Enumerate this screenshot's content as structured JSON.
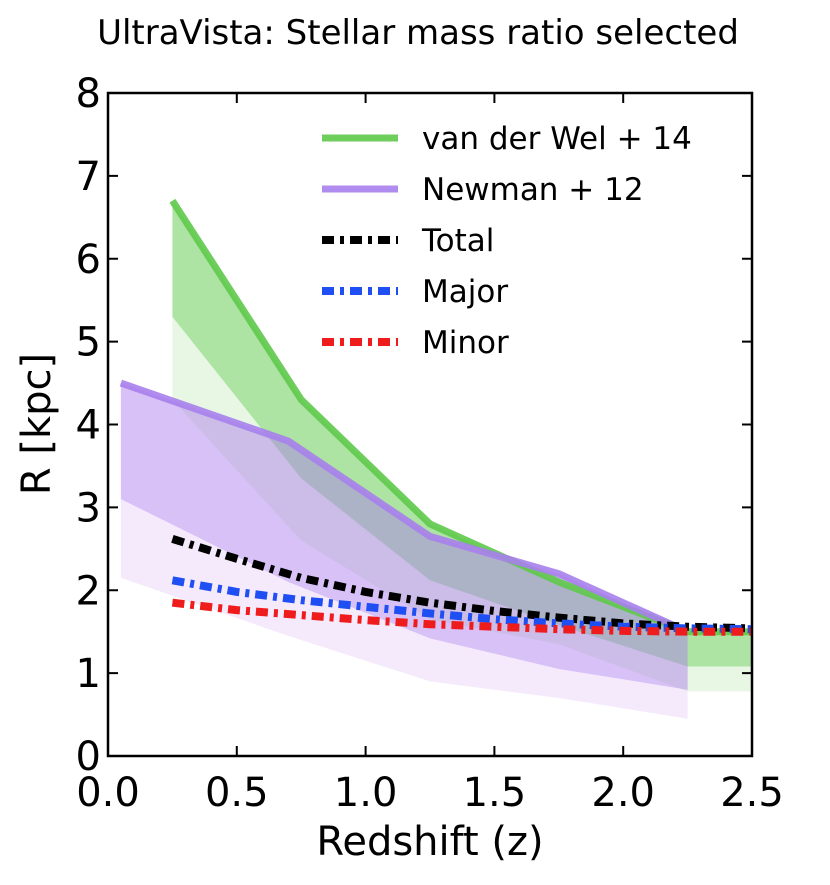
{
  "chart_data": {
    "type": "line",
    "title": "UltraVista: Stellar mass ratio selected",
    "xlabel": "Redshift (z)",
    "ylabel": "R [kpc]",
    "xlim": [
      0.0,
      2.5
    ],
    "ylim": [
      0,
      8
    ],
    "xticks": [
      0.0,
      0.5,
      1.0,
      1.5,
      2.0,
      2.5
    ],
    "xtick_labels": [
      "0.0",
      "0.5",
      "1.0",
      "1.5",
      "2.0",
      "2.5"
    ],
    "yticks": [
      0,
      1,
      2,
      3,
      4,
      5,
      6,
      7,
      8
    ],
    "ytick_labels": [
      "0",
      "1",
      "2",
      "3",
      "4",
      "5",
      "6",
      "7",
      "8"
    ],
    "legend_position": "top-right",
    "series": [
      {
        "name": "van der Wel + 14",
        "style": "solid",
        "color": "#5ec94a",
        "x": [
          0.25,
          0.75,
          1.25,
          1.75,
          2.25,
          2.5
        ],
        "values": [
          6.7,
          4.3,
          2.8,
          2.1,
          1.5,
          1.5
        ]
      },
      {
        "name": "Newman + 12",
        "style": "solid",
        "color": "#a77fec",
        "x": [
          0.05,
          0.7,
          1.25,
          1.75,
          2.25
        ],
        "values": [
          4.5,
          3.8,
          2.65,
          2.2,
          1.5
        ]
      },
      {
        "name": "Total",
        "style": "dashdot",
        "color": "#000000",
        "x": [
          0.25,
          0.5,
          0.75,
          1.0,
          1.25,
          1.5,
          1.75,
          2.0,
          2.25,
          2.5
        ],
        "values": [
          2.62,
          2.38,
          2.15,
          1.98,
          1.85,
          1.75,
          1.67,
          1.6,
          1.56,
          1.54
        ]
      },
      {
        "name": "Major",
        "style": "dashdot",
        "color": "#1f4ff2",
        "x": [
          0.25,
          0.5,
          0.75,
          1.0,
          1.25,
          1.5,
          1.75,
          2.0,
          2.25,
          2.5
        ],
        "values": [
          2.12,
          1.98,
          1.88,
          1.8,
          1.72,
          1.65,
          1.6,
          1.56,
          1.54,
          1.53
        ]
      },
      {
        "name": "Minor",
        "style": "dashdot",
        "color": "#ee1c1c",
        "x": [
          0.25,
          0.5,
          0.75,
          1.0,
          1.25,
          1.5,
          1.75,
          2.0,
          2.25,
          2.5
        ],
        "values": [
          1.85,
          1.76,
          1.7,
          1.64,
          1.59,
          1.56,
          1.53,
          1.51,
          1.5,
          1.5
        ]
      }
    ],
    "bands": [
      {
        "name": "van der Wel + 14 scatter (outer)",
        "color": "#5ec94a",
        "opacity": 0.15,
        "x": [
          0.25,
          0.75,
          1.25,
          1.75,
          2.25,
          2.5
        ],
        "upper": [
          6.7,
          4.3,
          2.8,
          2.1,
          1.5,
          1.5
        ],
        "lower": [
          4.3,
          2.6,
          1.65,
          1.35,
          0.78,
          0.78
        ]
      },
      {
        "name": "van der Wel + 14 scatter (inner)",
        "color": "#5ec94a",
        "opacity": 0.42,
        "x": [
          0.25,
          0.75,
          1.25,
          1.75,
          2.25,
          2.5
        ],
        "upper": [
          6.7,
          4.3,
          2.8,
          2.1,
          1.5,
          1.5
        ],
        "lower": [
          5.3,
          3.35,
          2.12,
          1.58,
          1.08,
          1.08
        ]
      },
      {
        "name": "Newman + 12 scatter (outer)",
        "color": "#c889ec",
        "opacity": 0.18,
        "x": [
          0.05,
          0.7,
          1.25,
          1.75,
          2.25
        ],
        "upper": [
          4.5,
          3.8,
          2.65,
          2.2,
          1.5
        ],
        "lower": [
          2.15,
          1.45,
          0.9,
          0.7,
          0.45
        ]
      },
      {
        "name": "Newman + 12 scatter (inner)",
        "color": "#a77fec",
        "opacity": 0.38,
        "x": [
          0.05,
          0.7,
          1.25,
          1.75,
          2.25
        ],
        "upper": [
          4.5,
          3.8,
          2.65,
          2.2,
          1.5
        ],
        "lower": [
          3.1,
          2.1,
          1.42,
          1.05,
          0.8
        ]
      }
    ]
  }
}
